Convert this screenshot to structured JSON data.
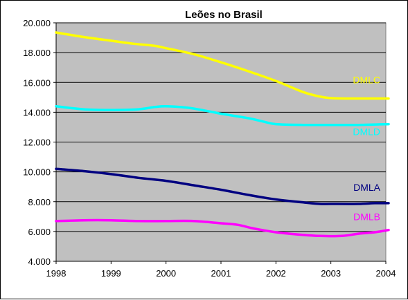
{
  "chart_data": {
    "type": "line",
    "title": "Leões no Brasil",
    "xlabel": "",
    "ylabel": "",
    "x": [
      "1998",
      "1999",
      "2000",
      "2001",
      "2002",
      "2003",
      "2004"
    ],
    "xlim": [
      1998,
      2004
    ],
    "ylim": [
      4000,
      20000
    ],
    "yticks": [
      4000,
      6000,
      8000,
      10000,
      12000,
      14000,
      16000,
      18000,
      20000
    ],
    "ytick_labels": [
      "4.000",
      "6.000",
      "8.000",
      "10.000",
      "12.000",
      "14.000",
      "16.000",
      "18.000",
      "20.000"
    ],
    "xtick_labels": [
      "1998",
      "1999",
      "2000",
      "2001",
      "2002",
      "2003",
      "2004"
    ],
    "grid": true,
    "plot_background": "#C0C0C0",
    "legend": "labels at right end of each line",
    "series": [
      {
        "name": "DMLC",
        "color": "#FFFF00",
        "points": [
          [
            1998,
            19350
          ],
          [
            1998.5,
            19050
          ],
          [
            1999,
            18800
          ],
          [
            1999.4,
            18600
          ],
          [
            1999.8,
            18450
          ],
          [
            2000,
            18300
          ],
          [
            2000.5,
            17900
          ],
          [
            2001,
            17350
          ],
          [
            2001.5,
            16750
          ],
          [
            2002,
            16100
          ],
          [
            2002.5,
            15350
          ],
          [
            2002.8,
            15050
          ],
          [
            2003,
            14950
          ],
          [
            2003.3,
            14920
          ],
          [
            2003.7,
            14920
          ],
          [
            2004.05,
            14920
          ]
        ]
      },
      {
        "name": "DMLD",
        "color": "#00FFFF",
        "points": [
          [
            1998,
            14400
          ],
          [
            1998.5,
            14200
          ],
          [
            1999,
            14150
          ],
          [
            1999.5,
            14200
          ],
          [
            1999.8,
            14350
          ],
          [
            2000,
            14400
          ],
          [
            2000.4,
            14300
          ],
          [
            2000.8,
            14050
          ],
          [
            2001,
            13900
          ],
          [
            2001.5,
            13600
          ],
          [
            2001.8,
            13350
          ],
          [
            2002,
            13200
          ],
          [
            2002.5,
            13150
          ],
          [
            2003,
            13150
          ],
          [
            2003.5,
            13150
          ],
          [
            2004.05,
            13200
          ]
        ]
      },
      {
        "name": "DMLA",
        "color": "#000080",
        "points": [
          [
            1998,
            10200
          ],
          [
            1998.5,
            10050
          ],
          [
            1999,
            9850
          ],
          [
            1999.5,
            9600
          ],
          [
            2000,
            9400
          ],
          [
            2000.5,
            9100
          ],
          [
            2001,
            8800
          ],
          [
            2001.5,
            8450
          ],
          [
            2002,
            8150
          ],
          [
            2002.5,
            7950
          ],
          [
            2002.8,
            7850
          ],
          [
            2003,
            7850
          ],
          [
            2003.5,
            7850
          ],
          [
            2003.8,
            7900
          ],
          [
            2004.05,
            7900
          ]
        ]
      },
      {
        "name": "DMLB",
        "color": "#FF00FF",
        "points": [
          [
            1998,
            6700
          ],
          [
            1998.5,
            6750
          ],
          [
            1999,
            6750
          ],
          [
            1999.5,
            6700
          ],
          [
            2000,
            6700
          ],
          [
            2000.5,
            6700
          ],
          [
            2001,
            6550
          ],
          [
            2001.3,
            6450
          ],
          [
            2001.6,
            6200
          ],
          [
            2002,
            5950
          ],
          [
            2002.4,
            5800
          ],
          [
            2002.8,
            5700
          ],
          [
            2003.2,
            5700
          ],
          [
            2003.5,
            5850
          ],
          [
            2003.8,
            5950
          ],
          [
            2004.05,
            6100
          ]
        ]
      }
    ]
  }
}
